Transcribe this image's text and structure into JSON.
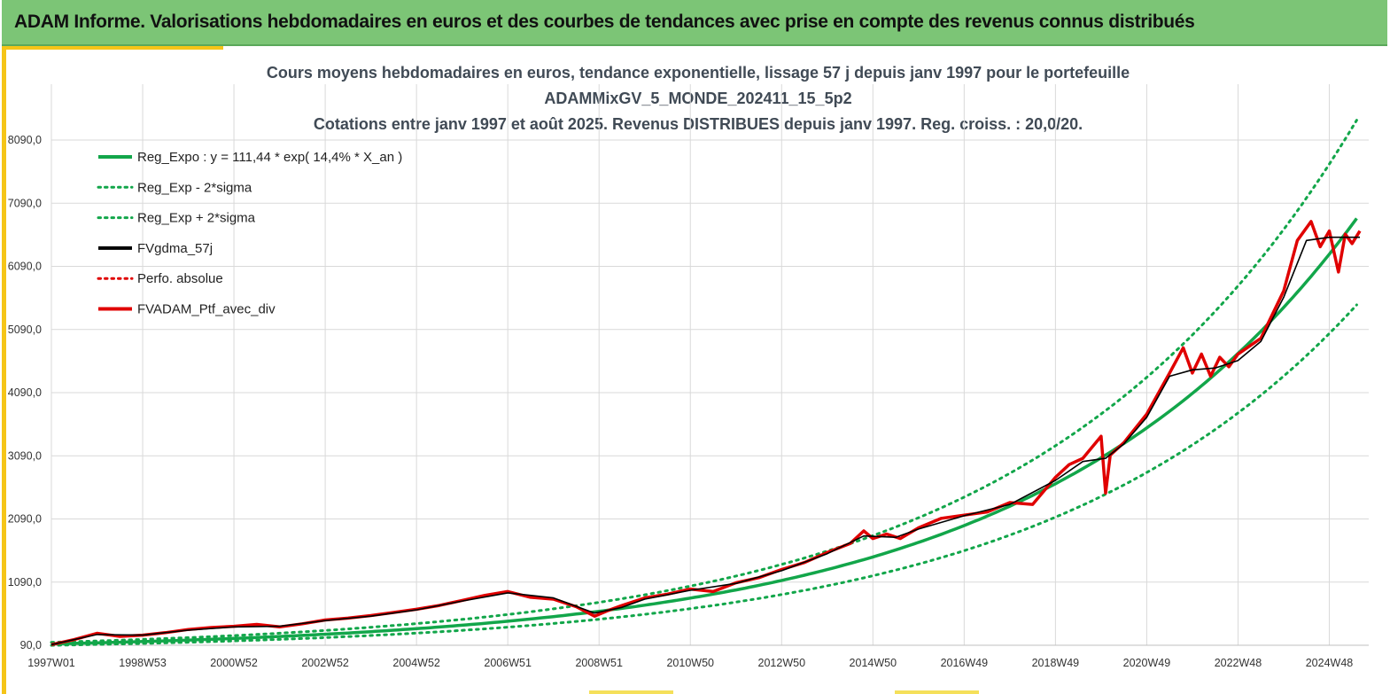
{
  "header": {
    "title": "ADAM Informe. Valorisations hebdomadaires en euros et des courbes de tendances avec prise en compte des revenus connus distribués"
  },
  "colors": {
    "banner": "#7cc576",
    "accent": "#f5c518",
    "green": "#12a64a",
    "red": "#e00000",
    "black": "#000000",
    "grid": "#d9d9d9"
  },
  "chart_data": {
    "type": "line",
    "title_lines": [
      "Cours moyens hebdomadaires  en euros, tendance exponentielle, lissage 57 j depuis janv 1997 pour le portefeuille",
      "ADAMMixGV_5_MONDE_202411_15_5p2",
      "Cotations  entre janv 1997 et août 2025. Revenus DISTRIBUES depuis janv 1997. Reg. croiss. : 20,0/20."
    ],
    "xlabel": "",
    "ylabel": "",
    "x_ticks": [
      "1997W01",
      "1998W53",
      "2000W52",
      "2002W52",
      "2004W52",
      "2006W51",
      "2008W51",
      "2010W50",
      "2012W50",
      "2014W50",
      "2016W49",
      "2018W49",
      "2020W49",
      "2022W48",
      "2024W48"
    ],
    "x_tick_years": [
      1997.0,
      1999.0,
      2001.0,
      2003.0,
      2005.0,
      2007.0,
      2009.0,
      2011.0,
      2013.0,
      2015.0,
      2017.0,
      2019.0,
      2021.0,
      2023.0,
      2025.0
    ],
    "xlim": [
      1997.0,
      2025.67
    ],
    "y_ticks": [
      "90,0",
      "1090,0",
      "2090,0",
      "3090,0",
      "4090,0",
      "5090,0",
      "6090,0",
      "7090,0",
      "8090,0"
    ],
    "ylim": [
      90,
      8090
    ],
    "grid": true,
    "legend_position": "top-left",
    "legend": [
      {
        "label": "Reg_Expo : y = 111,44 * exp( 14,4% *  X_an )",
        "color": "#12a64a",
        "style": "solid"
      },
      {
        "label": "Reg_Exp - 2*sigma",
        "color": "#12a64a",
        "style": "dotted"
      },
      {
        "label": "Reg_Exp + 2*sigma",
        "color": "#12a64a",
        "style": "dotted"
      },
      {
        "label": "FVgdma_57j",
        "color": "#000000",
        "style": "solid"
      },
      {
        "label": "Perfo. absolue",
        "color": "#e00000",
        "style": "dotted"
      },
      {
        "label": "FVADAM_Ptf_avec_div",
        "color": "#e00000",
        "style": "solid"
      }
    ],
    "regression": {
      "a": 111.44,
      "rate": 0.144,
      "sigma_lower_factor": 0.8,
      "sigma_upper_factor": 1.227
    },
    "series": [
      {
        "name": "FVADAM_Ptf_avec_div",
        "x": [
          1997.0,
          1997.5,
          1998.0,
          1998.5,
          1999.0,
          1999.5,
          2000.0,
          2000.5,
          2001.0,
          2001.5,
          2002.0,
          2002.5,
          2003.0,
          2003.5,
          2004.0,
          2004.5,
          2005.0,
          2005.5,
          2006.0,
          2006.5,
          2007.0,
          2007.5,
          2008.0,
          2008.5,
          2008.9,
          2009.2,
          2009.5,
          2010.0,
          2010.5,
          2011.0,
          2011.5,
          2012.0,
          2012.5,
          2013.0,
          2013.5,
          2014.0,
          2014.5,
          2014.8,
          2015.0,
          2015.3,
          2015.6,
          2016.0,
          2016.5,
          2017.0,
          2017.5,
          2018.0,
          2018.5,
          2019.0,
          2019.3,
          2019.6,
          2020.0,
          2020.1,
          2020.2,
          2020.5,
          2021.0,
          2021.5,
          2021.8,
          2022.0,
          2022.2,
          2022.4,
          2022.6,
          2022.8,
          2023.0,
          2023.5,
          2024.0,
          2024.3,
          2024.6,
          2024.8,
          2025.0,
          2025.2,
          2025.35,
          2025.5,
          2025.67
        ],
        "y": [
          100,
          180,
          280,
          230,
          250,
          290,
          340,
          370,
          390,
          420,
          380,
          430,
          490,
          520,
          560,
          610,
          660,
          720,
          800,
          880,
          940,
          850,
          820,
          700,
          550,
          640,
          720,
          840,
          900,
          980,
          940,
          1080,
          1160,
          1290,
          1400,
          1560,
          1700,
          1900,
          1780,
          1850,
          1780,
          1950,
          2100,
          2150,
          2200,
          2350,
          2320,
          2750,
          2950,
          3050,
          3400,
          2500,
          3100,
          3300,
          3750,
          4400,
          4800,
          4400,
          4700,
          4350,
          4650,
          4500,
          4700,
          4950,
          5700,
          6500,
          6800,
          6400,
          6650,
          6000,
          6600,
          6450,
          6650
        ]
      },
      {
        "name": "FVgdma_57j",
        "x": [
          1997.0,
          1998.0,
          1999.0,
          2000.0,
          2001.0,
          2002.0,
          2003.0,
          2004.0,
          2005.0,
          2006.0,
          2007.0,
          2008.0,
          2008.9,
          2009.5,
          2010.0,
          2011.0,
          2012.0,
          2013.0,
          2014.0,
          2014.8,
          2015.5,
          2016.0,
          2017.0,
          2018.0,
          2019.0,
          2019.6,
          2020.1,
          2020.5,
          2021.0,
          2021.5,
          2022.0,
          2022.5,
          2023.0,
          2023.5,
          2024.0,
          2024.5,
          2025.0,
          2025.67
        ],
        "y": [
          100,
          260,
          250,
          330,
          380,
          390,
          480,
          550,
          650,
          790,
          920,
          840,
          600,
          690,
          820,
          960,
          1070,
          1270,
          1540,
          1820,
          1800,
          1930,
          2140,
          2320,
          2700,
          3000,
          3050,
          3280,
          3700,
          4350,
          4450,
          4480,
          4600,
          4900,
          5600,
          6500,
          6550,
          6550
        ]
      }
    ]
  }
}
